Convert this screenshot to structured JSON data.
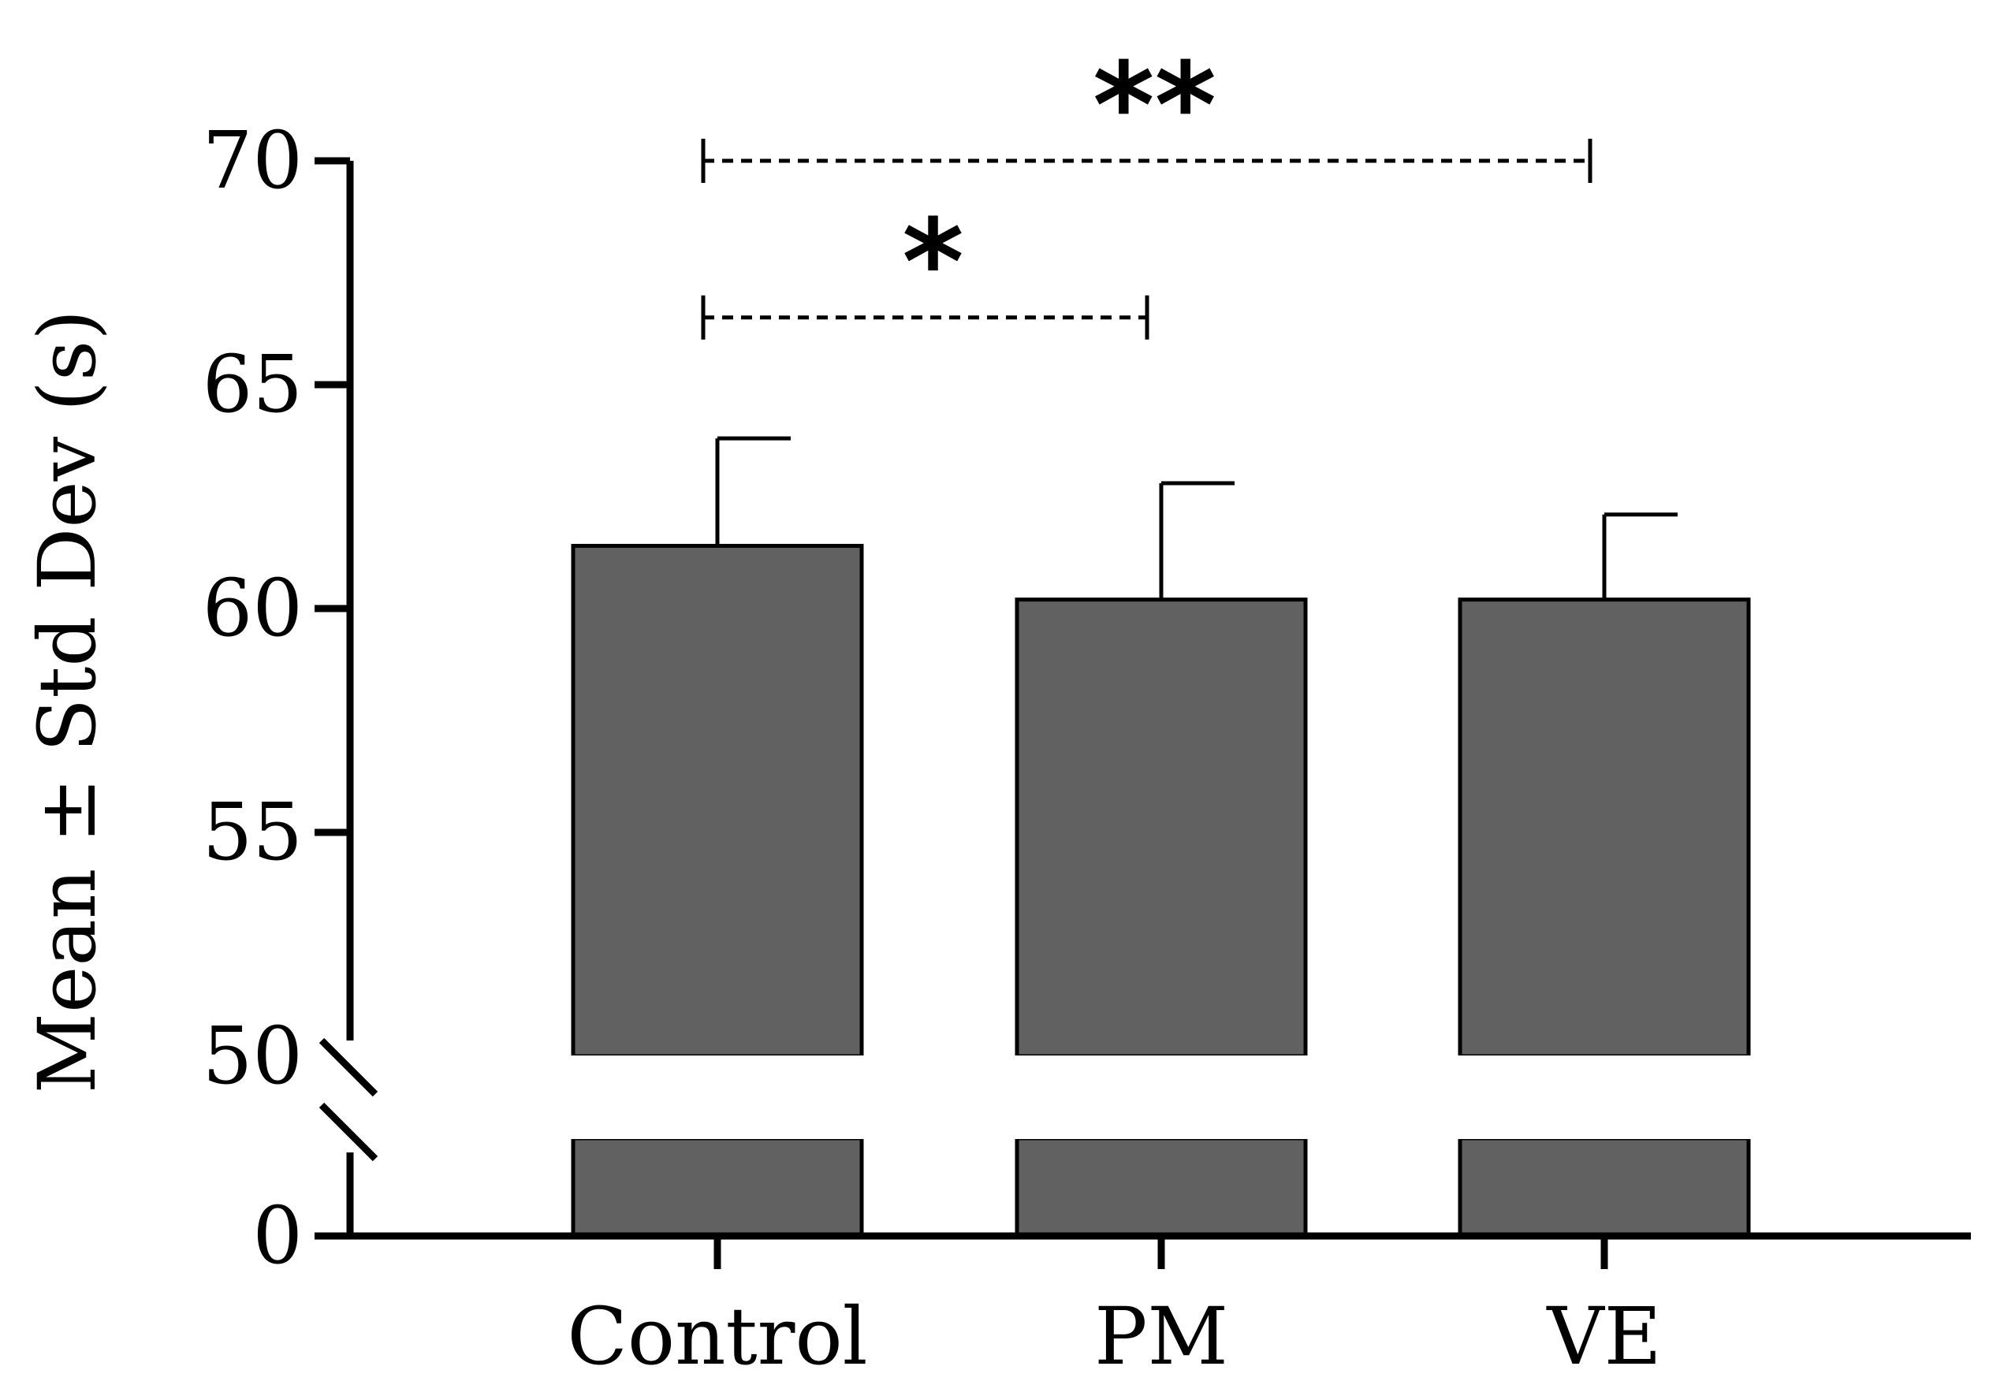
{
  "chart_data": {
    "type": "bar",
    "title": "",
    "xlabel": "",
    "ylabel": "Mean ± Std Dev (s)",
    "categories": [
      "Control",
      "PM",
      "VE"
    ],
    "values": [
      61.4,
      60.2,
      60.2
    ],
    "errors": [
      2.4,
      2.6,
      1.9
    ],
    "y_axis_break": {
      "lower_segment": [
        0,
        0
      ],
      "upper_segment": [
        50,
        70
      ]
    },
    "yticks": [
      0,
      50,
      55,
      60,
      65,
      70
    ],
    "ytick_labels": [
      "0",
      "50",
      "55",
      "60",
      "65",
      "70"
    ],
    "bar_color": "#616161",
    "significance": [
      {
        "from": "Control",
        "to": "PM",
        "label": "*",
        "y": 66.5
      },
      {
        "from": "Control",
        "to": "VE",
        "label": "**",
        "y": 70
      }
    ]
  }
}
